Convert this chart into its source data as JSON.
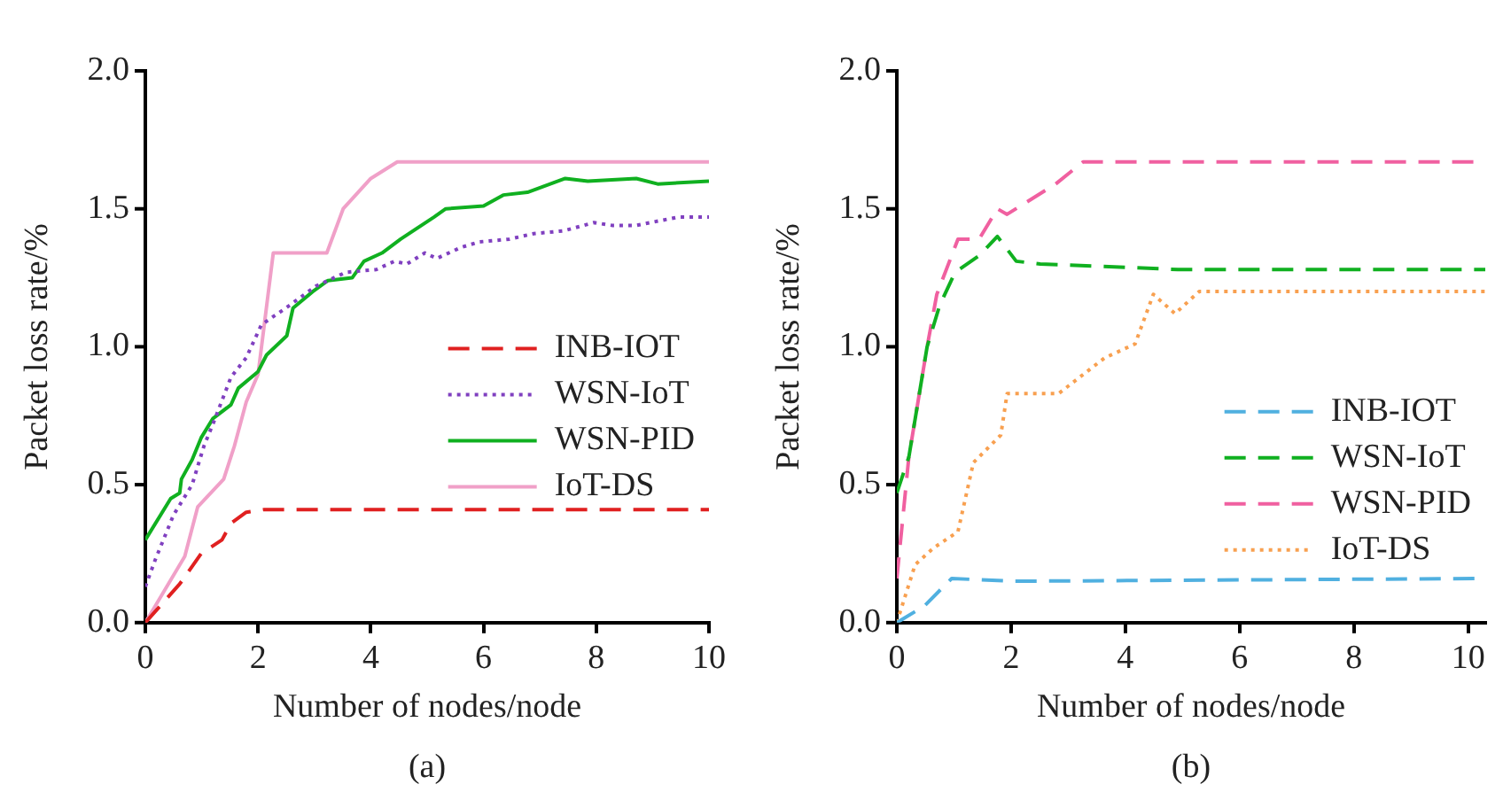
{
  "chart_data": [
    {
      "type": "line",
      "xlabel": "Number of nodes/node",
      "ylabel": "Packet loss rate/%",
      "annotations": [
        "(a)"
      ],
      "xlim": [
        0,
        10
      ],
      "xticks": [
        0,
        2,
        4,
        6,
        8,
        10
      ],
      "ylim": [
        0,
        2
      ],
      "yticks": [
        {
          "value": 0,
          "label": "0.0"
        },
        {
          "value": 0.5,
          "label": "0.5"
        },
        {
          "value": 1,
          "label": "1.0"
        },
        {
          "value": 1.5,
          "label": "1.5"
        },
        {
          "value": 2,
          "label": "2.0"
        }
      ],
      "grid": false,
      "legend": "right",
      "marker": "none",
      "series": [
        {
          "name": "INB-IOT",
          "color": "#e02020",
          "line_style": "dashed",
          "x": [
            0,
            0.61,
            0.99,
            1.36,
            1.52,
            1.79,
            2.11,
            10
          ],
          "values": [
            0,
            0.14,
            0.25,
            0.3,
            0.36,
            0.4,
            0.41,
            0.41
          ]
        },
        {
          "name": "WSN-IoT",
          "color": "#8040c0",
          "line_style": "dotted",
          "x": [
            0,
            0.18,
            0.5,
            0.83,
            1.04,
            1.2,
            1.52,
            1.79,
            2.06,
            2.49,
            3.03,
            3.56,
            4.1,
            4.42,
            4.64,
            4.96,
            5.17,
            5.6,
            5.92,
            6.46,
            6.89,
            7.42,
            7.96,
            8.28,
            8.71,
            9.46,
            10
          ],
          "values": [
            0.13,
            0.23,
            0.39,
            0.5,
            0.64,
            0.72,
            0.89,
            0.96,
            1.08,
            1.14,
            1.22,
            1.27,
            1.28,
            1.31,
            1.3,
            1.34,
            1.32,
            1.36,
            1.38,
            1.39,
            1.41,
            1.42,
            1.45,
            1.44,
            1.44,
            1.47,
            1.47
          ]
        },
        {
          "name": "WSN-PID",
          "color": "#10b020",
          "line_style": "solid",
          "x": [
            0,
            0.45,
            0.61,
            0.64,
            0.83,
            0.99,
            1.2,
            1.52,
            1.65,
            2,
            2.15,
            2.51,
            2.62,
            2.97,
            3.24,
            3.67,
            3.88,
            4.2,
            4.53,
            5.12,
            5.33,
            6,
            6.35,
            6.78,
            7.45,
            7.85,
            8.71,
            9.09,
            10
          ],
          "values": [
            0.3,
            0.45,
            0.47,
            0.52,
            0.59,
            0.67,
            0.74,
            0.79,
            0.85,
            0.91,
            0.97,
            1.04,
            1.14,
            1.2,
            1.24,
            1.25,
            1.31,
            1.34,
            1.39,
            1.47,
            1.5,
            1.51,
            1.55,
            1.56,
            1.61,
            1.6,
            1.61,
            1.59,
            1.6
          ]
        },
        {
          "name": "IoT-DS",
          "color": "#f0a0c8",
          "line_style": "solid",
          "x": [
            0,
            0.7,
            0.93,
            1.39,
            1.58,
            1.79,
            2,
            2.27,
            3.22,
            3.51,
            4,
            4.47,
            10
          ],
          "values": [
            0,
            0.24,
            0.42,
            0.52,
            0.64,
            0.8,
            0.9,
            1.34,
            1.34,
            1.5,
            1.61,
            1.67,
            1.67
          ]
        }
      ]
    },
    {
      "type": "line",
      "xlabel": "Number of nodes/node",
      "ylabel": "Packet loss rate/%",
      "annotations": [
        "(b)"
      ],
      "xlim": [
        0,
        10.3
      ],
      "xticks": [
        0,
        2,
        4,
        6,
        8,
        10
      ],
      "ylim": [
        0,
        2
      ],
      "yticks": [
        {
          "value": 0,
          "label": "0.0"
        },
        {
          "value": 0.5,
          "label": "0.5"
        },
        {
          "value": 1,
          "label": "1.0"
        },
        {
          "value": 1.5,
          "label": "1.5"
        },
        {
          "value": 2,
          "label": "2.0"
        }
      ],
      "grid": false,
      "legend": "bottom right",
      "marker": "none",
      "series": [
        {
          "name": "INB-IOT",
          "color": "#50b0e0",
          "line_style": "dashed",
          "x": [
            0,
            0.48,
            0.96,
            2.03,
            10.3
          ],
          "values": [
            0,
            0.06,
            0.16,
            0.15,
            0.16
          ]
        },
        {
          "name": "WSN-IoT",
          "color": "#10b020",
          "line_style": "dashed",
          "x": [
            0,
            0.21,
            0.53,
            0.75,
            1.02,
            1.44,
            1.76,
            2.09,
            2.51,
            4.92,
            10.3
          ],
          "values": [
            0.47,
            0.6,
            1,
            1.15,
            1.27,
            1.33,
            1.4,
            1.31,
            1.3,
            1.28,
            1.28
          ]
        },
        {
          "name": "WSN-PID",
          "color": "#f060a0",
          "line_style": "dashed",
          "x": [
            0,
            0.21,
            0.53,
            0.7,
            1.07,
            1.44,
            1.76,
            1.93,
            2.78,
            3.26,
            10.3
          ],
          "values": [
            0.16,
            0.6,
            1,
            1.19,
            1.39,
            1.39,
            1.5,
            1.48,
            1.59,
            1.67,
            1.67
          ]
        },
        {
          "name": "IoT-DS",
          "color": "#f8a050",
          "line_style": "dotted",
          "x": [
            0,
            0.32,
            0.64,
            1.07,
            1.34,
            1.82,
            1.93,
            2.83,
            3.64,
            4.17,
            4.49,
            4.87,
            5.29,
            10.3
          ],
          "values": [
            0,
            0.21,
            0.27,
            0.33,
            0.58,
            0.68,
            0.83,
            0.83,
            0.96,
            1.01,
            1.19,
            1.12,
            1.2,
            1.2
          ]
        }
      ]
    }
  ]
}
